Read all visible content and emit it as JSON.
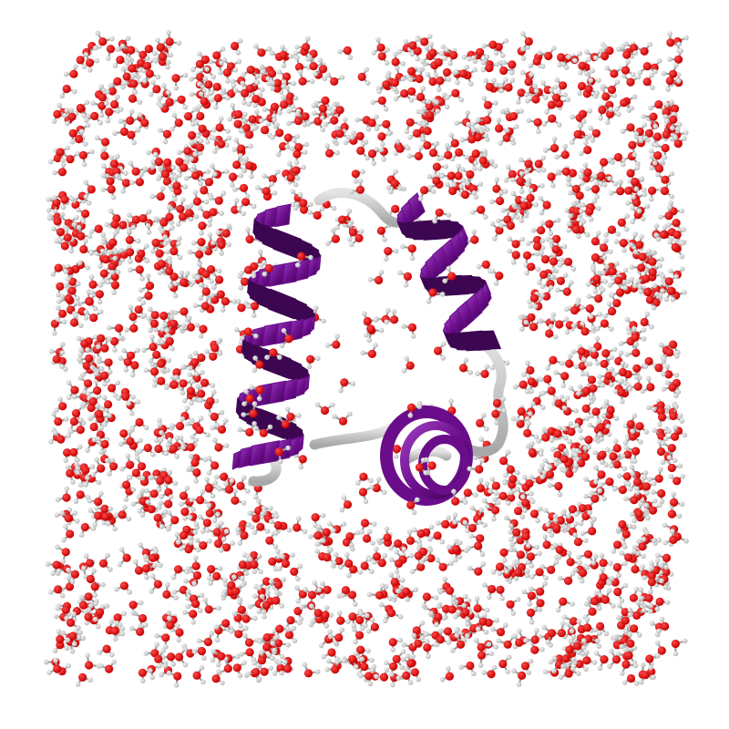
{
  "scene": {
    "background": "#ffffff",
    "colors": {
      "oxygen": "#c40000",
      "oxygen_highlight": "#ff4a4a",
      "hydrogen": "#b9b9b9",
      "hydrogen_highlight": "#f2f2f2",
      "bond": "#9e9e9e",
      "helix": "#6a0d8a",
      "helix_shadow": "#3d0650",
      "helix_highlight": "#9a3bbd",
      "coil": "#a8a8a8",
      "coil_highlight": "#e4e4e4"
    },
    "icon": "water-box-protein-helix-render"
  }
}
